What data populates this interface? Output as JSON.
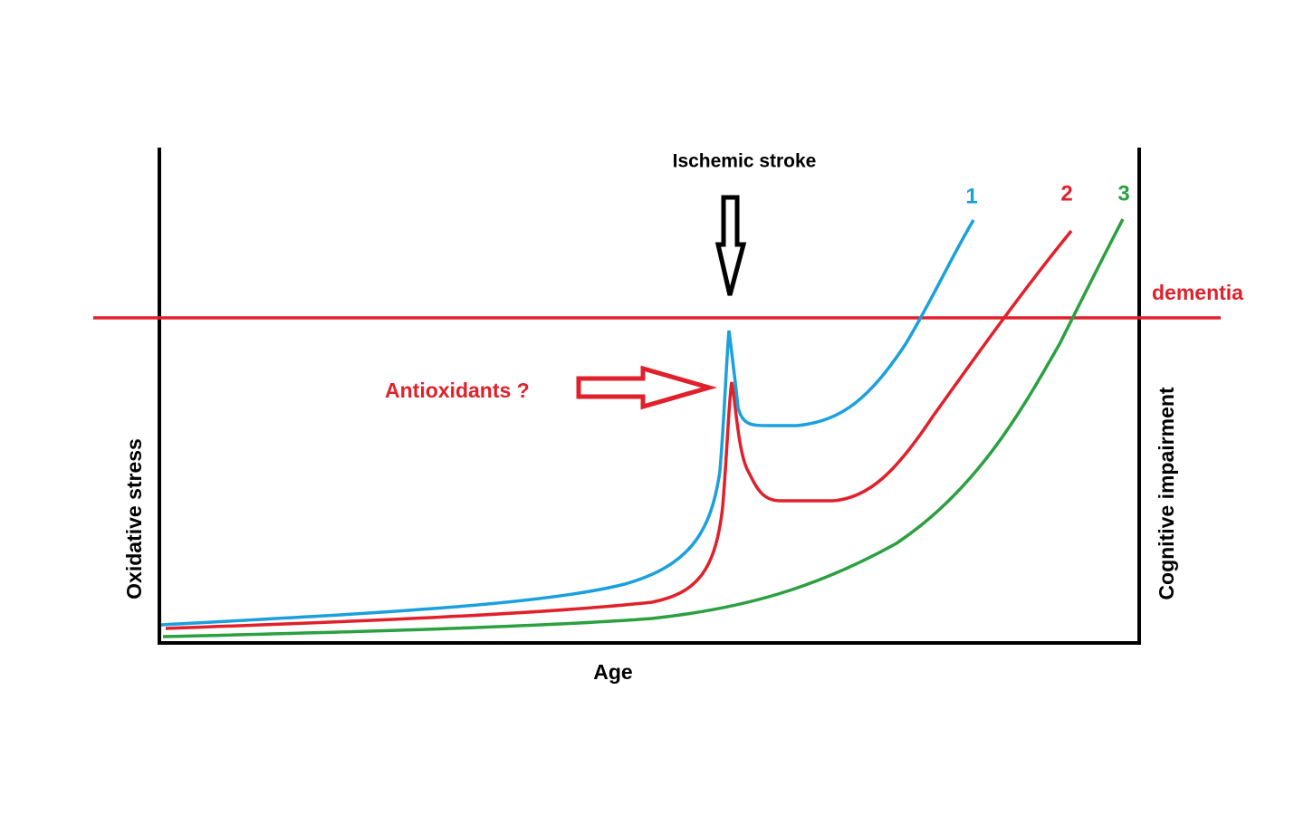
{
  "axes": {
    "x": "Age",
    "y_left": "Oxidative stress",
    "y_right": "Cognitive impairment"
  },
  "annotations": {
    "event": "Ischemic stroke",
    "threshold": "dementia",
    "intervention": "Antioxidants ?"
  },
  "curves": [
    "1",
    "2",
    "3"
  ]
}
